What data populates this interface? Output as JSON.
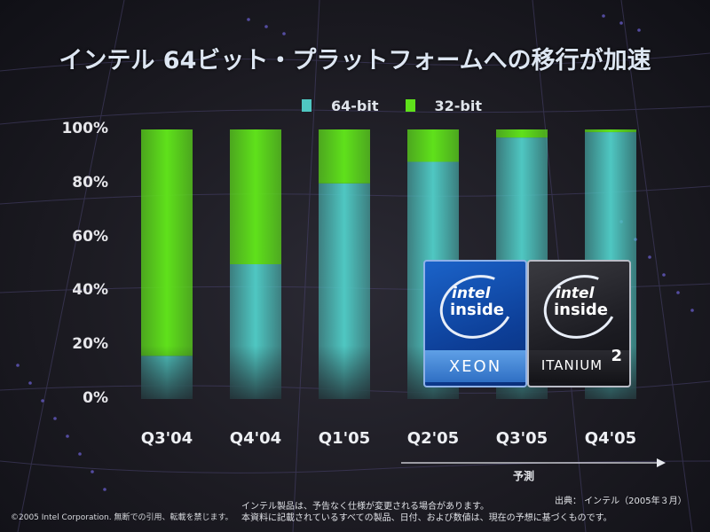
{
  "title": "インテル 64ビット・プラットフォームへの移行が加速",
  "colors": {
    "series_64": "#4fc7c2",
    "series_32": "#5fe11b"
  },
  "chart_data": {
    "type": "bar",
    "stacked": true,
    "categories": [
      "Q3'04",
      "Q4'04",
      "Q1'05",
      "Q2'05",
      "Q3'05",
      "Q4'05"
    ],
    "series": [
      {
        "name": "64-bit",
        "values": [
          16,
          50,
          80,
          88,
          97,
          99
        ]
      },
      {
        "name": "32-bit",
        "values": [
          84,
          50,
          20,
          12,
          3,
          1
        ]
      }
    ],
    "ylim": [
      0,
      100
    ],
    "yticks": [
      "0%",
      "20%",
      "40%",
      "60%",
      "80%",
      "100%"
    ],
    "legend_placement": "top-center",
    "grid": false,
    "forecast_label": "予測",
    "source": "出典： インテル（2005年３月）"
  },
  "logos": {
    "xeon": {
      "top": "intel",
      "bottom": "inside",
      "name": "XEON"
    },
    "itanium": {
      "top": "intel",
      "bottom": "inside",
      "name": "ITANIUM",
      "sup": "2"
    }
  },
  "footer": {
    "copyright": "©2005 Intel Corporation. 無断での引用、転載を禁じます。",
    "note_line1": "インテル製品は、予告なく仕様が変更される場合があります。",
    "note_line2": "本資料に記載されているすべての製品、日付、および数値は、現在の予想に基づくものです。"
  }
}
